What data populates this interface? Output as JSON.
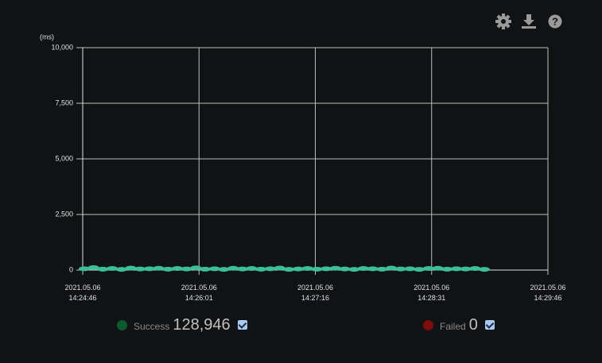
{
  "chart_data": {
    "type": "scatter",
    "ylabel": "(ms)",
    "xlim": [
      "2021-05-06T14:24:46",
      "2021-05-06T14:29:46"
    ],
    "xticks": [
      {
        "value": "2021-05-06T14:24:46",
        "label": "2021.05.06\n14:24:46"
      },
      {
        "value": "2021-05-06T14:26:01",
        "label": "2021.05.06\n14:26:01"
      },
      {
        "value": "2021-05-06T14:27:16",
        "label": "2021.05.06\n14:27:16"
      },
      {
        "value": "2021-05-06T14:28:31",
        "label": "2021.05.06\n14:28:31"
      },
      {
        "value": "2021-05-06T14:29:46",
        "label": "2021.05.06\n14:29:46"
      }
    ],
    "ylim": [
      0,
      10000
    ],
    "yticks": [
      0,
      {
        "value": 2500,
        "label": "2,500"
      },
      {
        "value": 5000,
        "label": "5,000"
      },
      {
        "value": 7500,
        "label": "7,500"
      },
      {
        "value": 10000,
        "label": "10,000"
      }
    ],
    "grid": true,
    "series": [
      {
        "name": "Success",
        "color": "#3dbf95",
        "legend_color": "#0d5a2e",
        "count": {
          "value": 128946,
          "label": "128,946"
        },
        "x": [
          "2021-05-06T14:24:47",
          "2021-05-06T14:24:53",
          "2021-05-06T14:24:59",
          "2021-05-06T14:25:05",
          "2021-05-06T14:25:11",
          "2021-05-06T14:25:17",
          "2021-05-06T14:25:23",
          "2021-05-06T14:25:29",
          "2021-05-06T14:25:35",
          "2021-05-06T14:25:41",
          "2021-05-06T14:25:47",
          "2021-05-06T14:25:53",
          "2021-05-06T14:25:59",
          "2021-05-06T14:26:05",
          "2021-05-06T14:26:11",
          "2021-05-06T14:26:17",
          "2021-05-06T14:26:23",
          "2021-05-06T14:26:29",
          "2021-05-06T14:26:35",
          "2021-05-06T14:26:41",
          "2021-05-06T14:26:47",
          "2021-05-06T14:26:53",
          "2021-05-06T14:26:59",
          "2021-05-06T14:27:05",
          "2021-05-06T14:27:11",
          "2021-05-06T14:27:17",
          "2021-05-06T14:27:23",
          "2021-05-06T14:27:29",
          "2021-05-06T14:27:35",
          "2021-05-06T14:27:41",
          "2021-05-06T14:27:47",
          "2021-05-06T14:27:53",
          "2021-05-06T14:27:59",
          "2021-05-06T14:28:05",
          "2021-05-06T14:28:11",
          "2021-05-06T14:28:17",
          "2021-05-06T14:28:23",
          "2021-05-06T14:28:29",
          "2021-05-06T14:28:35",
          "2021-05-06T14:28:41",
          "2021-05-06T14:28:47",
          "2021-05-06T14:28:53",
          "2021-05-06T14:28:59",
          "2021-05-06T14:29:05"
        ],
        "values": [
          60,
          110,
          40,
          70,
          30,
          90,
          50,
          60,
          80,
          40,
          70,
          50,
          100,
          40,
          60,
          30,
          80,
          50,
          70,
          40,
          60,
          90,
          30,
          50,
          70,
          40,
          60,
          80,
          50,
          30,
          70,
          60,
          40,
          90,
          50,
          60,
          30,
          70,
          80,
          40,
          60,
          50,
          70,
          30
        ]
      },
      {
        "name": "Failed",
        "color": "#c0392b",
        "legend_color": "#7d0d0d",
        "count": 0,
        "x": [],
        "values": []
      }
    ]
  }
}
